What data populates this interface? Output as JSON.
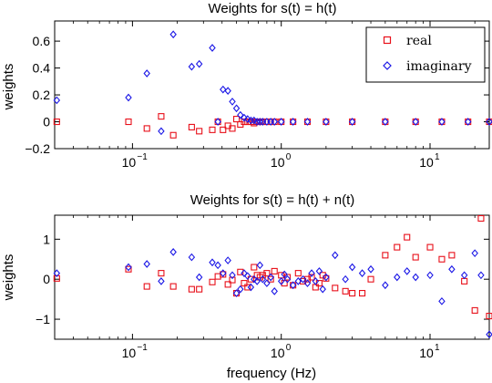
{
  "chart_data": [
    {
      "type": "scatter",
      "title": "Weights for s(t) = h(t)",
      "xlabel": "",
      "ylabel": "weights",
      "xscale": "log",
      "xlim": [
        0.03,
        25
      ],
      "ylim": [
        -0.2,
        0.75
      ],
      "xticks": [
        0.1,
        1,
        10
      ],
      "xtick_labels": [
        {
          "base": "10",
          "exp": "−1"
        },
        {
          "base": "10",
          "exp": "0"
        },
        {
          "base": "10",
          "exp": "1"
        }
      ],
      "yticks": [
        -0.2,
        0,
        0.2,
        0.4,
        0.6
      ],
      "ytick_labels": [
        "−0.2",
        "0",
        "0.2",
        "0.4",
        "0.6"
      ],
      "grid": false,
      "legend_position": "top-right",
      "series": [
        {
          "name": "real",
          "marker": "square",
          "color": "#e8101a",
          "x": [
            0.031,
            0.094,
            0.125,
            0.156,
            0.188,
            0.25,
            0.281,
            0.344,
            0.375,
            0.406,
            0.438,
            0.469,
            0.5,
            0.531,
            0.563,
            0.594,
            0.625,
            0.656,
            0.688,
            0.719,
            0.75,
            0.8,
            0.85,
            0.9,
            1.0,
            1.2,
            1.5,
            2.0,
            3.0,
            5.0,
            8.0,
            12.0,
            18.0,
            25.0
          ],
          "y": [
            0.0,
            0.0,
            -0.05,
            0.04,
            -0.1,
            -0.04,
            -0.07,
            -0.06,
            0.0,
            -0.06,
            -0.03,
            -0.05,
            0.02,
            -0.02,
            0.0,
            0.0,
            0.0,
            -0.01,
            0.0,
            0.0,
            0.0,
            0.0,
            0.0,
            0.0,
            0.0,
            0.0,
            0.0,
            0.0,
            0.0,
            0.0,
            0.0,
            0.0,
            0.0,
            0.0
          ]
        },
        {
          "name": "imaginary",
          "marker": "diamond",
          "color": "#1a16e6",
          "x": [
            0.031,
            0.094,
            0.125,
            0.156,
            0.188,
            0.25,
            0.281,
            0.344,
            0.375,
            0.406,
            0.438,
            0.469,
            0.5,
            0.531,
            0.563,
            0.594,
            0.625,
            0.656,
            0.688,
            0.719,
            0.75,
            0.8,
            0.85,
            0.9,
            1.0,
            1.2,
            1.5,
            2.0,
            3.0,
            5.0,
            8.0,
            12.0,
            18.0,
            25.0
          ],
          "y": [
            0.16,
            0.18,
            0.36,
            -0.07,
            0.65,
            0.41,
            0.43,
            0.55,
            0.0,
            0.24,
            0.23,
            0.15,
            0.1,
            0.05,
            0.03,
            0.02,
            0.01,
            0.01,
            0.0,
            0.0,
            0.0,
            0.0,
            0.0,
            0.0,
            0.0,
            0.0,
            0.0,
            0.0,
            0.0,
            0.0,
            0.0,
            0.0,
            0.0,
            0.0
          ]
        }
      ]
    },
    {
      "type": "scatter",
      "title": "Weights for s(t) = h(t) + n(t)",
      "xlabel": "frequency (Hz)",
      "ylabel": "weights",
      "xscale": "log",
      "xlim": [
        0.03,
        25
      ],
      "ylim": [
        -1.5,
        1.6
      ],
      "xticks": [
        0.1,
        1,
        10
      ],
      "xtick_labels": [
        {
          "base": "10",
          "exp": "−1"
        },
        {
          "base": "10",
          "exp": "0"
        },
        {
          "base": "10",
          "exp": "1"
        }
      ],
      "yticks": [
        -1,
        0,
        1
      ],
      "ytick_labels": [
        "−1",
        "0",
        "1"
      ],
      "grid": false,
      "series": [
        {
          "name": "real",
          "marker": "square",
          "color": "#e8101a",
          "x": [
            0.031,
            0.094,
            0.125,
            0.156,
            0.188,
            0.25,
            0.281,
            0.344,
            0.375,
            0.406,
            0.438,
            0.469,
            0.5,
            0.531,
            0.563,
            0.594,
            0.625,
            0.656,
            0.688,
            0.719,
            0.75,
            0.8,
            0.85,
            0.9,
            1.0,
            1.05,
            1.1,
            1.2,
            1.3,
            1.4,
            1.5,
            1.6,
            1.7,
            1.8,
            1.9,
            2.0,
            2.3,
            2.7,
            3.0,
            3.5,
            4.0,
            5.0,
            6.0,
            7.0,
            8.0,
            10.0,
            12.0,
            14.0,
            17.0,
            20.0,
            22.0,
            25.0
          ],
          "y": [
            0.02,
            0.25,
            -0.18,
            0.15,
            -0.18,
            -0.25,
            -0.25,
            -0.07,
            0.07,
            0.12,
            -0.13,
            -0.02,
            -0.35,
            0.18,
            -0.1,
            -0.2,
            0.0,
            0.3,
            0.1,
            0.05,
            0.1,
            0.15,
            0.0,
            0.2,
            0.1,
            -0.1,
            0.05,
            -0.15,
            0.15,
            -0.05,
            0.0,
            0.05,
            -0.2,
            -0.1,
            0.1,
            0.02,
            -0.22,
            -0.3,
            -0.35,
            -0.35,
            0.0,
            0.6,
            0.8,
            1.05,
            0.55,
            0.8,
            0.5,
            0.6,
            -0.05,
            -0.78,
            1.52,
            -0.92
          ]
        },
        {
          "name": "imaginary",
          "marker": "diamond",
          "color": "#1a16e6",
          "x": [
            0.031,
            0.094,
            0.125,
            0.156,
            0.188,
            0.25,
            0.281,
            0.344,
            0.375,
            0.406,
            0.438,
            0.469,
            0.5,
            0.531,
            0.563,
            0.594,
            0.625,
            0.656,
            0.688,
            0.719,
            0.75,
            0.8,
            0.85,
            0.9,
            1.0,
            1.05,
            1.1,
            1.2,
            1.3,
            1.4,
            1.5,
            1.6,
            1.7,
            1.8,
            1.9,
            2.0,
            2.3,
            2.7,
            3.0,
            3.5,
            4.0,
            5.0,
            6.0,
            7.0,
            8.0,
            10.0,
            12.0,
            14.0,
            17.0,
            20.0,
            22.0,
            25.0
          ],
          "y": [
            0.15,
            0.3,
            0.38,
            -0.05,
            0.68,
            0.55,
            0.05,
            0.42,
            0.35,
            0.15,
            0.47,
            0.1,
            -0.35,
            -0.25,
            0.15,
            0.08,
            -0.2,
            0.0,
            -0.05,
            0.35,
            0.0,
            -0.1,
            0.05,
            -0.3,
            -0.05,
            0.12,
            0.0,
            -0.15,
            -0.05,
            0.0,
            -0.1,
            0.15,
            -0.05,
            0.2,
            -0.25,
            0.05,
            0.6,
            0.0,
            0.3,
            0.15,
            0.25,
            -0.15,
            0.05,
            0.2,
            0.05,
            0.1,
            -0.55,
            0.25,
            0.1,
            0.65,
            0.1,
            -1.38
          ]
        }
      ]
    }
  ]
}
